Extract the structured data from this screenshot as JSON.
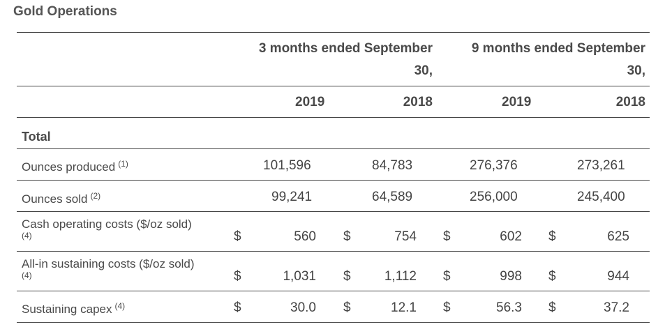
{
  "title": "Gold Operations",
  "header": {
    "group1": [
      "3 months ended September",
      "30,"
    ],
    "group2": [
      "9 months ended September",
      "30,"
    ],
    "years": [
      "2019",
      "2018",
      "2019",
      "2018"
    ]
  },
  "section_label": "Total",
  "currency_symbol": "$",
  "rows": [
    {
      "label": "Ounces produced",
      "note": "(1)",
      "values": [
        "101,596",
        "84,783",
        "276,376",
        "273,261"
      ]
    },
    {
      "label": "Ounces sold",
      "note": "(2)",
      "values": [
        "99,241",
        "64,589",
        "256,000",
        "245,400"
      ]
    },
    {
      "label": "Cash operating costs ($/oz sold)",
      "note": "(4)",
      "values": [
        "560",
        "754",
        "602",
        "625"
      ]
    },
    {
      "label": "All-in sustaining costs ($/oz sold)",
      "note": "(4)",
      "values": [
        "1,031",
        "1,112",
        "998",
        "944"
      ]
    },
    {
      "label": "Sustaining capex",
      "note": "(4)",
      "values": [
        "30.0",
        "12.1",
        "56.3",
        "37.2"
      ]
    }
  ]
}
